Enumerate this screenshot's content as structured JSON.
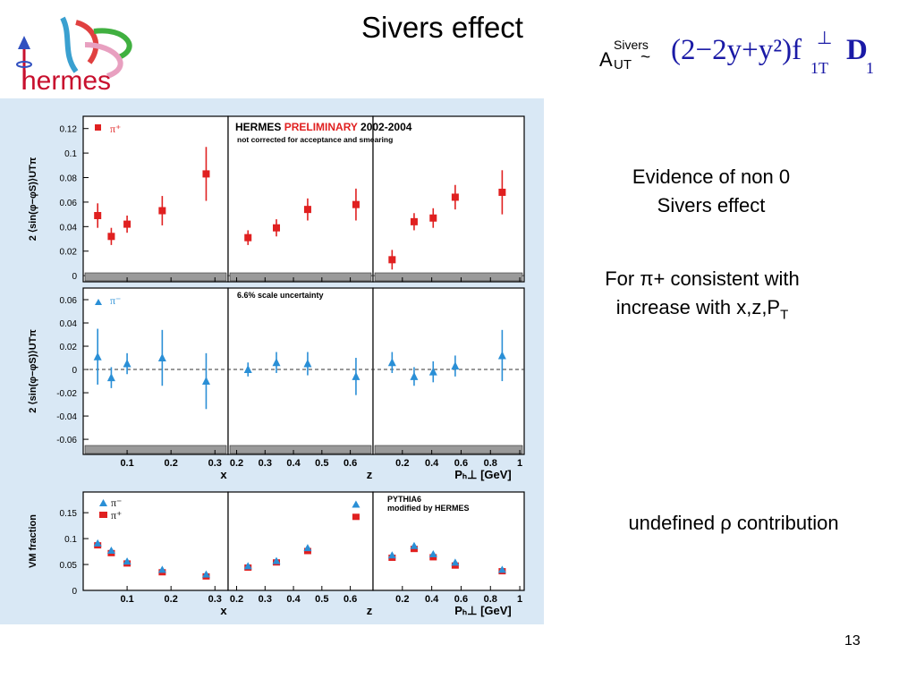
{
  "slide": {
    "title": "Sivers effect",
    "page_number": "13",
    "logo_text": "hermes"
  },
  "formula": {
    "a": "A",
    "sup": "Sivers",
    "sub": "UT",
    "tilde": "~",
    "expr": "(2−2y+y²)f",
    "perp": "⊥",
    "sub1": "1T",
    "d": "D",
    "sub2": "1"
  },
  "notes": {
    "n1_line1": "Evidence of non 0",
    "n1_line2": "Sivers effect",
    "n2_line1": "For π+ consistent with",
    "n2_line2": "increase with x,z,P",
    "n2_sub": "T",
    "n3": "undefined ρ contribution"
  },
  "colors": {
    "pi_plus": "#e02020",
    "pi_minus": "#2a8fd6",
    "figure_bg": "#d9e8f5",
    "logo_red": "#c8102e",
    "formula_blue": "#1a1aa6"
  },
  "chart_data": [
    {
      "type": "scatter",
      "name_panel": "pi+ row",
      "legend": [
        "π⁺"
      ],
      "header_line1_a": "HERMES ",
      "header_line1_b": "PRELIMINARY",
      "header_line1_c": " 2002-2004",
      "header_line2": "not corrected for acceptance and smearing",
      "ylabel": "2 ⟨sin(φ−φS)⟩UTπ",
      "ylim": [
        -0.005,
        0.13
      ],
      "yticks": [
        0,
        0.02,
        0.04,
        0.06,
        0.08,
        0.1,
        0.12
      ],
      "ytick_labels": [
        "0",
        "0.02",
        "0.04",
        "0.06",
        "0.08",
        "0.1",
        "0.12"
      ],
      "panels": {
        "x": {
          "points": [
            [
              0.033,
              0.049,
              0.01
            ],
            [
              0.064,
              0.032,
              0.007
            ],
            [
              0.1,
              0.042,
              0.007
            ],
            [
              0.18,
              0.053,
              0.012
            ],
            [
              0.28,
              0.083,
              0.022
            ]
          ]
        },
        "z": {
          "points": [
            [
              0.24,
              0.031,
              0.006
            ],
            [
              0.34,
              0.039,
              0.007
            ],
            [
              0.45,
              0.054,
              0.009
            ],
            [
              0.62,
              0.058,
              0.013
            ]
          ]
        },
        "p": {
          "points": [
            [
              0.13,
              0.013,
              0.008
            ],
            [
              0.28,
              0.044,
              0.007
            ],
            [
              0.41,
              0.047,
              0.008
            ],
            [
              0.56,
              0.064,
              0.01
            ],
            [
              0.88,
              0.068,
              0.018
            ]
          ]
        }
      }
    },
    {
      "type": "scatter",
      "name_panel": "pi- row",
      "legend": [
        "π⁻"
      ],
      "annotation": "6.6% scale uncertainty",
      "ylabel": "2 ⟨sin(φ−φS)⟩UTπ",
      "ylim": [
        -0.073,
        0.07
      ],
      "yticks": [
        -0.06,
        -0.04,
        -0.02,
        0,
        0.02,
        0.04,
        0.06
      ],
      "ytick_labels": [
        "-0.06",
        "-0.04",
        "-0.02",
        "0",
        "0.02",
        "0.04",
        "0.06"
      ],
      "panels": {
        "x": {
          "points": [
            [
              0.033,
              0.011,
              0.024
            ],
            [
              0.064,
              -0.007,
              0.009
            ],
            [
              0.1,
              0.005,
              0.009
            ],
            [
              0.18,
              0.01,
              0.024
            ],
            [
              0.28,
              -0.01,
              0.024
            ]
          ]
        },
        "z": {
          "points": [
            [
              0.24,
              0.0,
              0.006
            ],
            [
              0.34,
              0.006,
              0.009
            ],
            [
              0.45,
              0.005,
              0.01
            ],
            [
              0.62,
              -0.006,
              0.016
            ]
          ]
        },
        "p": {
          "points": [
            [
              0.13,
              0.006,
              0.009
            ],
            [
              0.28,
              -0.006,
              0.008
            ],
            [
              0.41,
              -0.002,
              0.009
            ],
            [
              0.56,
              0.003,
              0.009
            ],
            [
              0.88,
              0.012,
              0.022
            ]
          ]
        }
      }
    },
    {
      "type": "scatter",
      "name_panel": "VM fraction row",
      "legend": [
        "π⁻",
        "π⁺"
      ],
      "annotation_line1": "PYTHIA6",
      "annotation_line2": "modified by HERMES",
      "ylabel": "VM fraction",
      "ylim": [
        0,
        0.19
      ],
      "yticks": [
        0,
        0.05,
        0.1,
        0.15
      ],
      "ytick_labels": [
        "0",
        "0.05",
        "0.1",
        "0.15"
      ],
      "xlabels": {
        "x": "x",
        "z": "z",
        "p": "Pₕ⊥ [GeV]"
      },
      "xtick_labels": {
        "x": [
          "0.1",
          "0.2",
          "0.3"
        ],
        "z": [
          "0.2",
          "0.3",
          "0.4",
          "0.5",
          "0.6"
        ],
        "p": [
          "0.2",
          "0.4",
          "0.6",
          "0.8",
          "1"
        ]
      },
      "panels": {
        "x": {
          "pi_minus": [
            [
              0.033,
              0.09
            ],
            [
              0.064,
              0.076
            ],
            [
              0.1,
              0.055
            ],
            [
              0.18,
              0.039
            ],
            [
              0.28,
              0.03
            ]
          ],
          "pi_plus": [
            [
              0.033,
              0.087
            ],
            [
              0.064,
              0.072
            ],
            [
              0.1,
              0.052
            ],
            [
              0.18,
              0.035
            ],
            [
              0.28,
              0.027
            ]
          ]
        },
        "z": {
          "pi_minus": [
            [
              0.24,
              0.046
            ],
            [
              0.34,
              0.056
            ],
            [
              0.45,
              0.081
            ],
            [
              0.62,
              0.165
            ]
          ],
          "pi_plus": [
            [
              0.24,
              0.044
            ],
            [
              0.34,
              0.054
            ],
            [
              0.45,
              0.076
            ],
            [
              0.62,
              0.142
            ]
          ]
        },
        "p": {
          "pi_minus": [
            [
              0.13,
              0.067
            ],
            [
              0.28,
              0.085
            ],
            [
              0.41,
              0.069
            ],
            [
              0.56,
              0.053
            ],
            [
              0.88,
              0.039
            ]
          ],
          "pi_plus": [
            [
              0.13,
              0.063
            ],
            [
              0.28,
              0.08
            ],
            [
              0.41,
              0.064
            ],
            [
              0.56,
              0.048
            ],
            [
              0.88,
              0.037
            ]
          ]
        }
      }
    }
  ]
}
